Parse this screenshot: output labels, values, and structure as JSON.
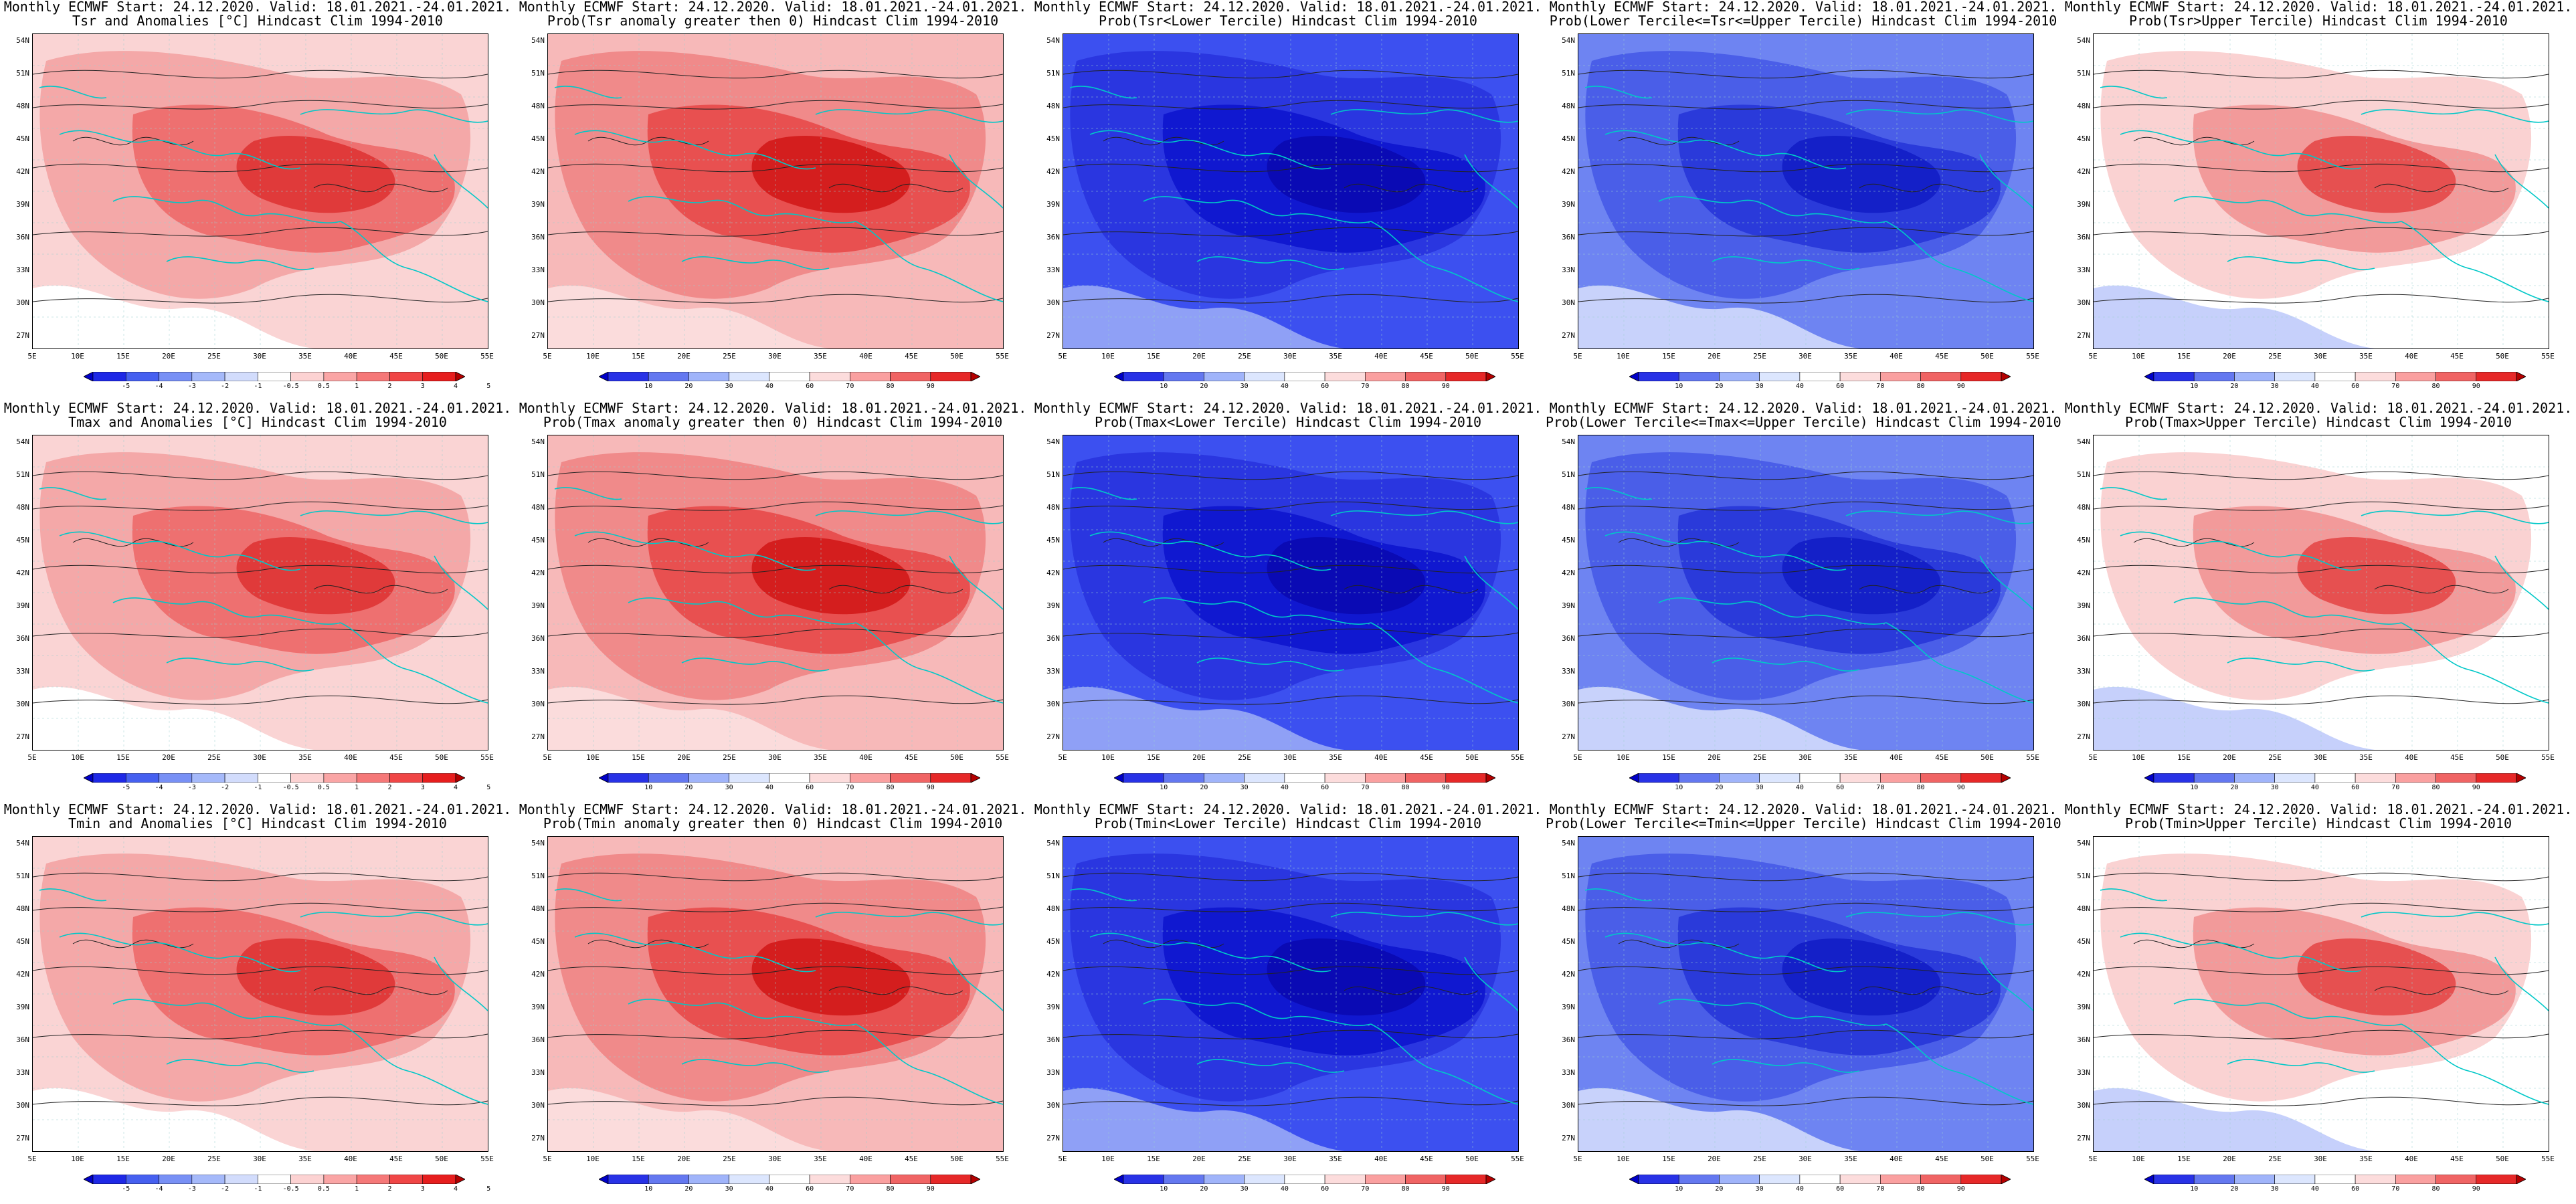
{
  "header_line": "Monthly ECMWF Start: 24.12.2020. Valid: 18.01.2021.-24.01.2021.",
  "lat_labels": [
    "54N",
    "51N",
    "48N",
    "45N",
    "42N",
    "39N",
    "36N",
    "33N",
    "30N",
    "27N"
  ],
  "lon_labels": [
    "5E",
    "10E",
    "15E",
    "20E",
    "25E",
    "30E",
    "35E",
    "40E",
    "45E",
    "50E",
    "55E"
  ],
  "colorbars": {
    "anomaly": {
      "labels": [
        "-5",
        "-4",
        "-3",
        "-2",
        "-1",
        "-0.5",
        "0.5",
        "1",
        "2",
        "3",
        "4",
        "5"
      ],
      "colors": [
        "#0000c8",
        "#1e28e6",
        "#4660f0",
        "#7890f5",
        "#a5b9fa",
        "#d2dcfc",
        "#ffffff",
        "#fcd2d2",
        "#faa5a5",
        "#f57878",
        "#f04646",
        "#e61e1e",
        "#b40000"
      ]
    },
    "probability": {
      "labels": [
        "10",
        "20",
        "30",
        "40",
        "60",
        "70",
        "80",
        "90"
      ],
      "colors": [
        "#0000c8",
        "#2832e6",
        "#6478f0",
        "#a0b4fa",
        "#dce6fe",
        "#ffffff",
        "#fcdcdc",
        "#faa0a0",
        "#f06464",
        "#e62828",
        "#b40000"
      ]
    }
  },
  "rows": [
    {
      "var": "Tsr",
      "panels": [
        {
          "subtitle": "Tsr and Anomalies [°C] Hindcast Clim 1994-2010",
          "bar": "anomaly",
          "theme": "anom"
        },
        {
          "subtitle": "Prob(Tsr anomaly greater then 0) Hindcast Clim 1994-2010",
          "bar": "probability",
          "theme": "probpos"
        },
        {
          "subtitle": "Prob(Tsr<Lower Tercile) Hindcast Clim 1994-2010",
          "bar": "probability",
          "theme": "lower"
        },
        {
          "subtitle": "Prob(Lower Tercile<=Tsr<=Upper Tercile) Hindcast Clim 1994-2010",
          "bar": "probability",
          "theme": "middle"
        },
        {
          "subtitle": "Prob(Tsr>Upper Tercile) Hindcast Clim 1994-2010",
          "bar": "probability",
          "theme": "upper"
        }
      ]
    },
    {
      "var": "Tmax",
      "panels": [
        {
          "subtitle": "Tmax and Anomalies [°C] Hindcast Clim 1994-2010",
          "bar": "anomaly",
          "theme": "anom"
        },
        {
          "subtitle": "Prob(Tmax anomaly greater then 0) Hindcast Clim 1994-2010",
          "bar": "probability",
          "theme": "probpos"
        },
        {
          "subtitle": "Prob(Tmax<Lower Tercile) Hindcast Clim 1994-2010",
          "bar": "probability",
          "theme": "lower"
        },
        {
          "subtitle": "Prob(Lower Tercile<=Tmax<=Upper Tercile) Hindcast Clim 1994-2010",
          "bar": "probability",
          "theme": "middle"
        },
        {
          "subtitle": "Prob(Tmax>Upper Tercile) Hindcast Clim 1994-2010",
          "bar": "probability",
          "theme": "upper"
        }
      ]
    },
    {
      "var": "Tmin",
      "panels": [
        {
          "subtitle": "Tmin and Anomalies [°C] Hindcast Clim 1994-2010",
          "bar": "anomaly",
          "theme": "anom"
        },
        {
          "subtitle": "Prob(Tmin anomaly greater then 0) Hindcast Clim 1994-2010",
          "bar": "probability",
          "theme": "probpos"
        },
        {
          "subtitle": "Prob(Tmin<Lower Tercile) Hindcast Clim 1994-2010",
          "bar": "probability",
          "theme": "lower"
        },
        {
          "subtitle": "Prob(Lower Tercile<=Tmin<=Upper Tercile) Hindcast Clim 1994-2010",
          "bar": "probability",
          "theme": "middle"
        },
        {
          "subtitle": "Prob(Tmin>Upper Tercile) Hindcast Clim 1994-2010",
          "bar": "probability",
          "theme": "upper"
        }
      ]
    }
  ],
  "themes": {
    "anom": {
      "base": "#fad4d4",
      "mid": "#f4a8a8",
      "core": "#ee7070",
      "hot": "#e03a3a",
      "edge": "#ffffff"
    },
    "probpos": {
      "base": "#f7b9b9",
      "mid": "#f08a8a",
      "core": "#e85050",
      "hot": "#d41e1e",
      "edge": "#fbdcdc"
    },
    "lower": {
      "base": "#3c50f0",
      "mid": "#2a36e0",
      "core": "#1018d0",
      "hot": "#0a0ab4",
      "edge": "#8fa0f6"
    },
    "middle": {
      "base": "#6e84f2",
      "mid": "#4a5ee8",
      "core": "#2a3ada",
      "hot": "#1420c8",
      "edge": "#c8d2fb"
    },
    "upper": {
      "base": "#ffffff",
      "mid": "#fad2d2",
      "core": "#f29a9a",
      "hot": "#e65050",
      "edge": "#c6d0fb"
    }
  },
  "colors": {
    "coast": "#00c8c8",
    "contour": "#222222",
    "frame": "#000000"
  }
}
